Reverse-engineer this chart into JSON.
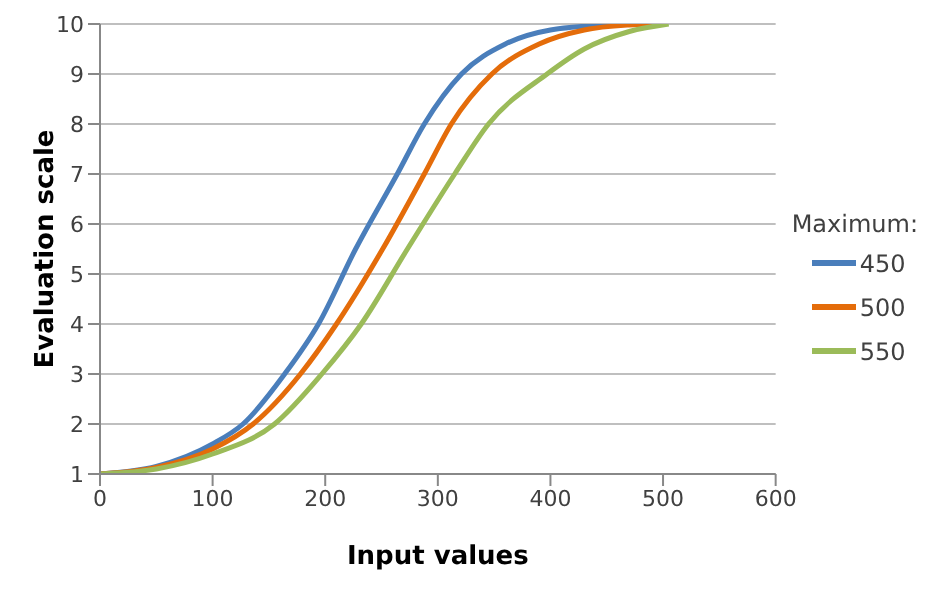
{
  "chart_data": {
    "type": "line",
    "xlabel": "Input values",
    "ylabel": "Evaluation scale",
    "legend_title": "Maximum:",
    "legend": "right",
    "grid": "y",
    "marker": "none",
    "line_style": "solid",
    "xlim": [
      0,
      600
    ],
    "xticks": [
      0,
      100,
      200,
      300,
      400,
      500,
      600
    ],
    "ylim": [
      1,
      10
    ],
    "yticks": [
      1,
      2,
      3,
      4,
      5,
      6,
      7,
      8,
      9,
      10
    ],
    "series": [
      {
        "name": "450",
        "color": "#4a7ebb",
        "x": [
          0,
          50,
          100,
          127,
          164,
          194,
          227,
          264,
          288,
          321,
          360,
          400,
          450,
          480
        ],
        "values": [
          1,
          1.15,
          1.6,
          2,
          3,
          4,
          5.5,
          7,
          8,
          9,
          9.6,
          9.88,
          9.98,
          10
        ]
      },
      {
        "name": "500",
        "color": "#e46c0a",
        "x": [
          0,
          50,
          100,
          136,
          178,
          210,
          251,
          288,
          312,
          348,
          390,
          430,
          470,
          495
        ],
        "values": [
          1,
          1.13,
          1.5,
          2,
          3,
          4,
          5.5,
          7,
          8,
          9,
          9.6,
          9.88,
          9.98,
          10
        ]
      },
      {
        "name": "550",
        "color": "#9bbb59",
        "x": [
          0,
          50,
          100,
          155,
          197,
          232,
          273,
          315,
          345,
          397,
          430,
          470,
          505
        ],
        "values": [
          1,
          1.1,
          1.4,
          2,
          3,
          4,
          5.5,
          7,
          8,
          9,
          9.5,
          9.85,
          10
        ]
      }
    ]
  }
}
